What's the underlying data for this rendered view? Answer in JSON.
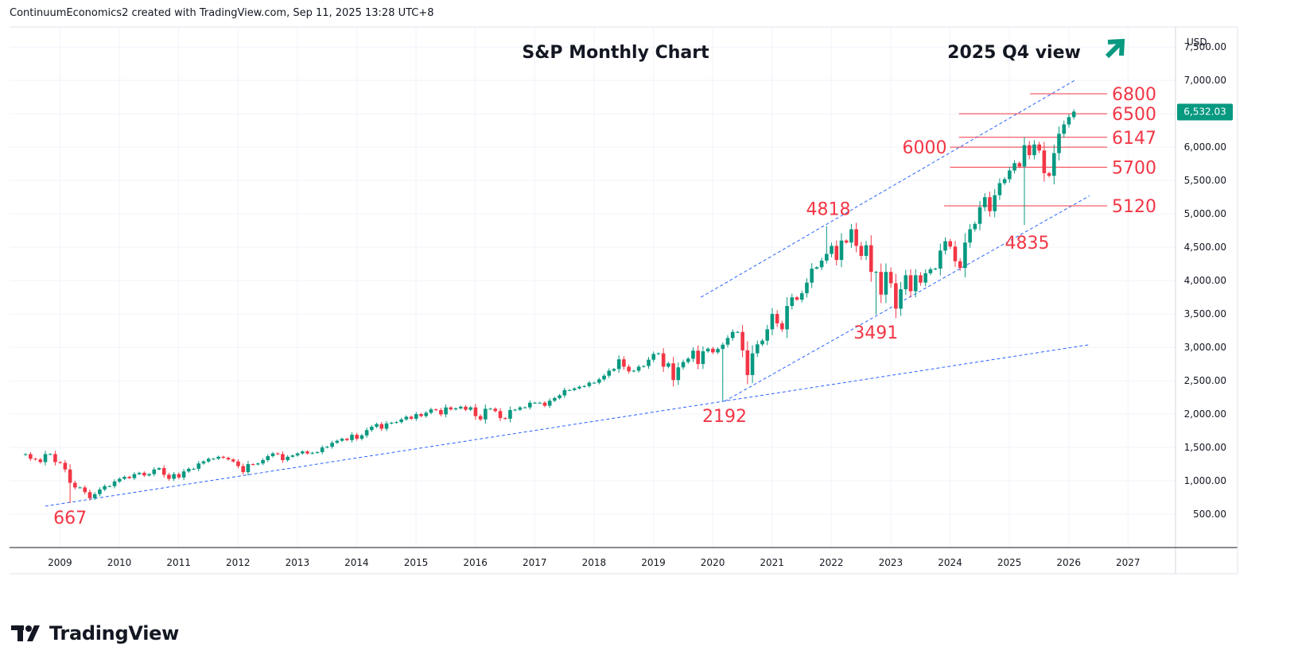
{
  "header": {
    "attribution": "ContinuumEconomics2 created with TradingView.com, Sep 11, 2025 13:28 UTC+8"
  },
  "chart_data": {
    "type": "candlestick",
    "title": "S&P Monthly Chart",
    "subtitle": "2025 Q4 view",
    "outlook": "up",
    "currency": "USD",
    "last_price": "6,532.03",
    "x_ticks": [
      "2009",
      "2010",
      "2011",
      "2012",
      "2013",
      "2014",
      "2015",
      "2016",
      "2017",
      "2018",
      "2019",
      "2020",
      "2021",
      "2022",
      "2023",
      "2024",
      "2025",
      "2026",
      "2027"
    ],
    "y_ticks": [
      "500.00",
      "1,000.00",
      "1,500.00",
      "2,000.00",
      "2,500.00",
      "3,000.00",
      "3,500.00",
      "4,000.00",
      "4,500.00",
      "5,000.00",
      "5,500.00",
      "6,000.00",
      "6,500.00",
      "7,000.00",
      "7,500.00"
    ],
    "ylim": [
      0,
      7800
    ],
    "xlim": [
      2008.15,
      2027.8
    ],
    "grid": true,
    "colors": {
      "up": "#089981",
      "down": "#f23645",
      "trend": "#2962ff",
      "label": "#f23645",
      "arrow": "#089981"
    },
    "levels": [
      {
        "label": "6800",
        "value": 6800,
        "from": 2025.35
      },
      {
        "label": "6500",
        "value": 6500,
        "from": 2024.15
      },
      {
        "label": "6147",
        "value": 6147,
        "from": 2024.15
      },
      {
        "label": "6000",
        "value": 6000,
        "from": 2024.0
      },
      {
        "label": "5700",
        "value": 5700,
        "from": 2024.0
      },
      {
        "label": "5120",
        "value": 5120,
        "from": 2023.9
      }
    ],
    "pivot_labels": [
      {
        "label": "667",
        "x": 2009.17,
        "y": 667
      },
      {
        "label": "2192",
        "x": 2020.2,
        "y": 2192
      },
      {
        "label": "4818",
        "x": 2021.95,
        "y": 4818
      },
      {
        "label": "3491",
        "x": 2022.75,
        "y": 3491
      },
      {
        "label": "4835",
        "x": 2025.3,
        "y": 4835
      }
    ],
    "trendlines": [
      {
        "x1": 2008.75,
        "y1": 620,
        "x2": 2026.35,
        "y2": 3040
      },
      {
        "x1": 2020.2,
        "y1": 2192,
        "x2": 2026.35,
        "y2": 5270
      },
      {
        "x1": 2019.8,
        "y1": 3750,
        "x2": 2026.1,
        "y2": 7000
      }
    ],
    "series": [
      {
        "name": "S&P 500",
        "closes": [
          1400,
          1330,
          1320,
          1280,
          1400,
          1400,
          1280,
          1270,
          1170,
          970,
          900,
          900,
          830,
          740,
          800,
          870,
          920,
          920,
          990,
          1030,
          1060,
          1040,
          1100,
          1120,
          1080,
          1100,
          1170,
          1190,
          1090,
          1030,
          1100,
          1050,
          1140,
          1180,
          1180,
          1260,
          1290,
          1330,
          1330,
          1360,
          1345,
          1320,
          1290,
          1220,
          1130,
          1250,
          1245,
          1260,
          1310,
          1370,
          1410,
          1400,
          1310,
          1360,
          1380,
          1410,
          1440,
          1410,
          1420,
          1430,
          1500,
          1510,
          1570,
          1600,
          1630,
          1610,
          1690,
          1630,
          1680,
          1760,
          1810,
          1850,
          1780,
          1860,
          1870,
          1880,
          1920,
          1960,
          1930,
          2000,
          1970,
          2020,
          2070,
          2060,
          1995,
          2100,
          2070,
          2085,
          2110,
          2065,
          2100,
          1970,
          1920,
          2080,
          2080,
          2045,
          1940,
          1930,
          2060,
          2065,
          2100,
          2100,
          2170,
          2170,
          2170,
          2125,
          2200,
          2240,
          2280,
          2360,
          2360,
          2385,
          2410,
          2420,
          2470,
          2470,
          2520,
          2575,
          2650,
          2675,
          2820,
          2710,
          2640,
          2650,
          2710,
          2720,
          2815,
          2900,
          2910,
          2710,
          2760,
          2510,
          2700,
          2780,
          2830,
          2950,
          2750,
          2940,
          2980,
          2925,
          2975,
          3040,
          3140,
          3230,
          3230,
          2955,
          2585,
          2910,
          3045,
          3100,
          3270,
          3500,
          3360,
          3270,
          3620,
          3750,
          3715,
          3810,
          3970,
          4180,
          4200,
          4300,
          4400,
          4520,
          4310,
          4600,
          4570,
          4770,
          4520,
          4370,
          4530,
          4130,
          4130,
          3790,
          4130,
          3960,
          3580,
          3870,
          4080,
          3840,
          4080,
          3970,
          4110,
          4170,
          4180,
          4450,
          4590,
          4510,
          4290,
          4190,
          4570,
          4770,
          4850,
          5100,
          5250,
          5040,
          5280,
          5460,
          5520,
          5650,
          5760,
          5710,
          6030,
          5880,
          6040,
          5950,
          5610,
          5570,
          5910,
          6200,
          6340,
          6450,
          6532
        ]
      }
    ]
  },
  "branding": {
    "name": "TradingView"
  }
}
